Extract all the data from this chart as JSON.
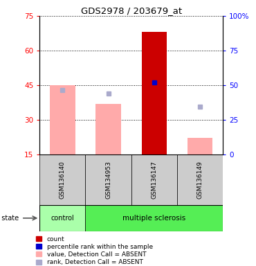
{
  "title": "GDS2978 / 203679_at",
  "samples": [
    "GSM136140",
    "GSM134953",
    "GSM136147",
    "GSM136149"
  ],
  "ylim_left": [
    15,
    75
  ],
  "ylim_right": [
    0,
    100
  ],
  "yticks_left": [
    15,
    30,
    45,
    60,
    75
  ],
  "yticks_right": [
    0,
    25,
    50,
    75,
    100
  ],
  "pink_bar_values": [
    45.0,
    37.0,
    15.0,
    22.0
  ],
  "blue_square_rank": [
    46.5,
    44.0,
    null,
    34.5
  ],
  "red_bar_value": [
    null,
    null,
    68.0,
    null
  ],
  "blue_square_percentile": [
    null,
    null,
    52.0,
    null
  ],
  "colors": {
    "red_bar": "#cc0000",
    "blue_square": "#0000cc",
    "pink_bar": "#ffaaaa",
    "blue_rank_square": "#aaaacc",
    "green_control": "#aaffaa",
    "green_ms": "#55ee55",
    "gray_sample": "#cccccc"
  },
  "legend_labels": [
    "count",
    "percentile rank within the sample",
    "value, Detection Call = ABSENT",
    "rank, Detection Call = ABSENT"
  ],
  "legend_colors_keys": [
    "red_bar",
    "blue_square",
    "pink_bar",
    "blue_rank_square"
  ]
}
